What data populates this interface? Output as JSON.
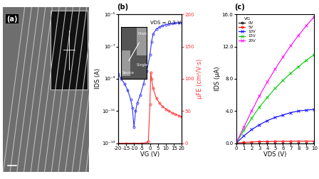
{
  "chart_data": [
    {
      "type": "image",
      "title": "(a)"
    },
    {
      "type": "line",
      "title": "(b)",
      "x_label": "VG (V)",
      "y_label": "IDS (A)",
      "y2_label": "μFE (cm²/V·s)",
      "annotations": [
        "VDS = 0.1 V"
      ],
      "inset_labels": [
        "Source",
        "Drain",
        "Single ZnO NW"
      ],
      "log": "y",
      "xlim": [
        -20,
        20
      ],
      "xticks": [
        -20,
        -15,
        -10,
        -5,
        0,
        5,
        10,
        15,
        20
      ],
      "ylim": [
        1e-13,
        1e-05
      ],
      "yticks": [
        {
          "value": 1e-13,
          "label": "10⁻¹³"
        },
        {
          "value": 1e-11,
          "label": "10⁻¹¹"
        },
        {
          "value": 1e-09,
          "label": "10⁻⁹"
        },
        {
          "value": 1e-07,
          "label": "10⁻⁷"
        },
        {
          "value": 1e-05,
          "label": "10⁻⁵"
        }
      ],
      "y2lim": [
        0,
        200
      ],
      "y2ticks": [
        0,
        50,
        100,
        150,
        200
      ],
      "series": [
        {
          "color": "#3333ff",
          "marker": "o",
          "axis": "y",
          "x": [
            -20,
            -18,
            -16,
            -14,
            -12,
            -11,
            -10,
            -9,
            -8,
            -6,
            -4,
            -2,
            0,
            1,
            2,
            4,
            6,
            8,
            10,
            12,
            14,
            16,
            18,
            20
          ],
          "values": [
            2e-09,
            1e-09,
            5e-10,
            2e-10,
            5e-11,
            1.5e-11,
            1e-12,
            1e-11,
            3e-11,
            1e-10,
            5e-10,
            3e-09,
            3e-08,
            2e-07,
            6e-07,
            1.2e-06,
            1.6e-06,
            2e-06,
            2.3e-06,
            2.5e-06,
            2.7e-06,
            2.9e-06,
            3e-06,
            3.1e-06
          ]
        },
        {
          "color": "#ff3333",
          "marker": "o",
          "axis": "y2",
          "x": [
            -20,
            -15,
            -10,
            -5,
            -2,
            -1,
            0,
            0.5,
            1,
            2,
            4,
            6,
            8,
            10,
            12,
            14,
            16,
            18,
            20
          ],
          "values": [
            0,
            0,
            0,
            0,
            1,
            3,
            60,
            110,
            100,
            85,
            70,
            62,
            57,
            53,
            50,
            47,
            45,
            43,
            41
          ]
        }
      ]
    },
    {
      "type": "line",
      "title": "(c)",
      "x_label": "VDS (V)",
      "y_label": "IDS (μA)",
      "legend": "upper left",
      "legend_title": "VG",
      "xlim": [
        0,
        10
      ],
      "xticks": [
        0,
        1,
        2,
        3,
        4,
        5,
        6,
        7,
        8,
        9,
        10
      ],
      "ylim": [
        0,
        16
      ],
      "yticks": [
        {
          "value": 0,
          "label": "0.0"
        },
        {
          "value": 4,
          "label": "4.0"
        },
        {
          "value": 8,
          "label": "8.0"
        },
        {
          "value": 12,
          "label": "12.0"
        },
        {
          "value": 16,
          "label": "16.0"
        }
      ],
      "x": [
        0,
        1,
        2,
        3,
        4,
        5,
        6,
        7,
        8,
        9,
        10
      ],
      "series": [
        {
          "name": "0V",
          "color": "#000000",
          "marker": "o",
          "values": [
            0,
            0,
            0,
            0,
            0,
            0,
            0,
            0,
            0,
            0,
            0
          ]
        },
        {
          "name": "5V",
          "color": "#ff0000",
          "marker": "o",
          "values": [
            0,
            0.1,
            0.15,
            0.2,
            0.2,
            0.22,
            0.23,
            0.24,
            0.25,
            0.25,
            0.25
          ]
        },
        {
          "name": "10V",
          "color": "#0000ff",
          "marker": "x",
          "values": [
            0,
            0.9,
            1.7,
            2.3,
            2.8,
            3.2,
            3.5,
            3.8,
            4.0,
            4.1,
            4.2
          ]
        },
        {
          "name": "15V",
          "color": "#00cc00",
          "marker": "x",
          "values": [
            0,
            1.6,
            3.1,
            4.5,
            5.7,
            6.8,
            7.8,
            8.7,
            9.5,
            10.3,
            11.0
          ]
        },
        {
          "name": "20V",
          "color": "#ff00ff",
          "marker": "x",
          "values": [
            0,
            2.0,
            4.0,
            5.9,
            7.6,
            9.2,
            10.7,
            12.1,
            13.4,
            14.6,
            15.7
          ]
        }
      ]
    }
  ]
}
